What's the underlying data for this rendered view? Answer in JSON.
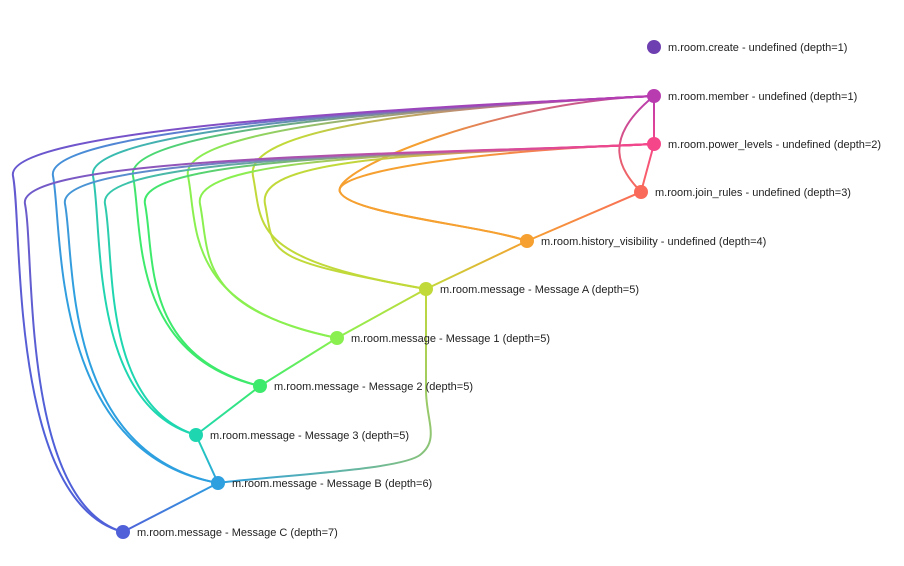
{
  "nodes": [
    {
      "id": "create",
      "label": "m.room.create - undefined (depth=1)",
      "color": "#6e3fb0"
    },
    {
      "id": "member",
      "label": "m.room.member - undefined (depth=1)",
      "color": "#b83cb0"
    },
    {
      "id": "power_levels",
      "label": "m.room.power_levels - undefined (depth=2)",
      "color": "#f5468a"
    },
    {
      "id": "join_rules",
      "label": "m.room.join_rules - undefined (depth=3)",
      "color": "#f96a5a"
    },
    {
      "id": "history_visibility",
      "label": "m.room.history_visibility - undefined (depth=4)",
      "color": "#f5a030"
    },
    {
      "id": "msgA",
      "label": "m.room.message - Message A (depth=5)",
      "color": "#c2d93a"
    },
    {
      "id": "msg1",
      "label": "m.room.message - Message 1 (depth=5)",
      "color": "#8af050"
    },
    {
      "id": "msg2",
      "label": "m.room.message - Message 2 (depth=5)",
      "color": "#3eea6c"
    },
    {
      "id": "msg3",
      "label": "m.room.message - Message 3 (depth=5)",
      "color": "#1ed7b0"
    },
    {
      "id": "msgB",
      "label": "m.room.message - Message B (depth=6)",
      "color": "#2ea0e0"
    },
    {
      "id": "msgC",
      "label": "m.room.message - Message C (depth=7)",
      "color": "#5060d8"
    }
  ],
  "edges": [
    [
      "member",
      "power_levels"
    ],
    [
      "member",
      "join_rules"
    ],
    [
      "power_levels",
      "join_rules"
    ],
    [
      "join_rules",
      "history_visibility"
    ],
    [
      "power_levels",
      "history_visibility"
    ],
    [
      "member",
      "history_visibility"
    ],
    [
      "history_visibility",
      "msgA"
    ],
    [
      "msgA",
      "msg1"
    ],
    [
      "msg1",
      "msg2"
    ],
    [
      "msg2",
      "msg3"
    ],
    [
      "msgA",
      "msgB"
    ],
    [
      "msg3",
      "msgB"
    ],
    [
      "msgB",
      "msgC"
    ],
    [
      "history_visibility",
      "msgA"
    ],
    [
      "member",
      "msgA"
    ],
    [
      "power_levels",
      "msgA"
    ],
    [
      "member",
      "msg1"
    ],
    [
      "power_levels",
      "msg1"
    ],
    [
      "member",
      "msg2"
    ],
    [
      "power_levels",
      "msg2"
    ],
    [
      "member",
      "msg3"
    ],
    [
      "power_levels",
      "msg3"
    ],
    [
      "member",
      "msgB"
    ],
    [
      "power_levels",
      "msgB"
    ],
    [
      "member",
      "msgC"
    ],
    [
      "power_levels",
      "msgC"
    ],
    [
      "history_visibility",
      "msgB"
    ],
    [
      "history_visibility",
      "msgC"
    ]
  ]
}
